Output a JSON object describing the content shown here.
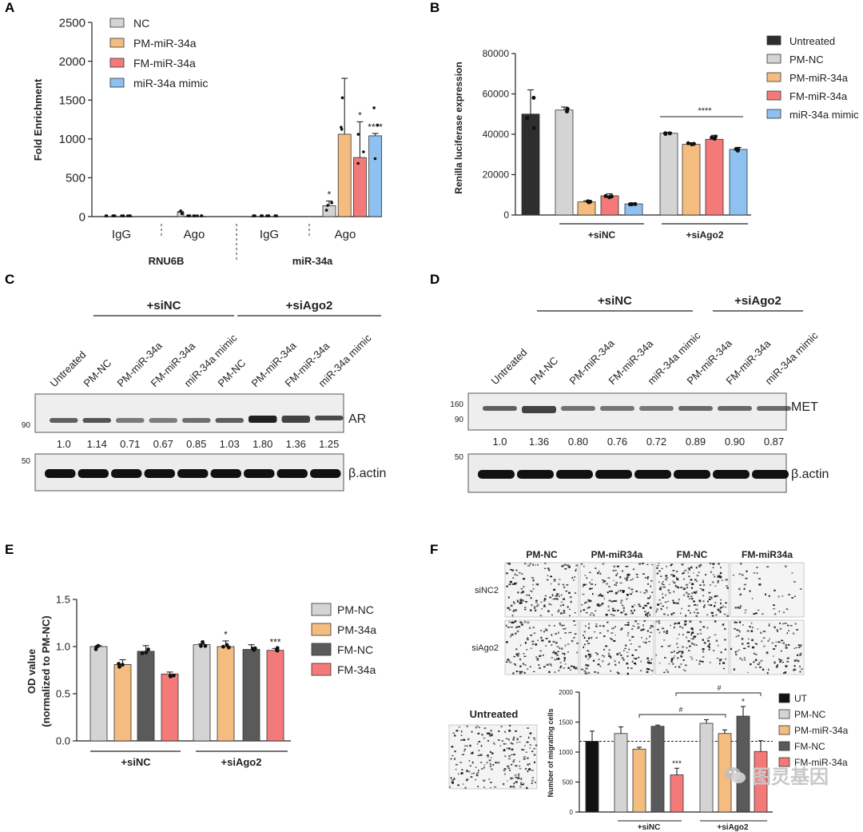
{
  "colors": {
    "NC": "#d4d4d4",
    "PM": "#f4bd7f",
    "FM": "#f47a7a",
    "mimic": "#8ec0f0",
    "untreated": "#2e2e2e",
    "fmnc": "#5a5a5a",
    "ut": "#111111"
  },
  "panels": {
    "A": {
      "letter": "A"
    },
    "B": {
      "letter": "B"
    },
    "C": {
      "letter": "C"
    },
    "D": {
      "letter": "D"
    },
    "E": {
      "letter": "E"
    },
    "F": {
      "letter": "F"
    }
  },
  "chart_data": [
    {
      "id": "A",
      "type": "bar",
      "title": "",
      "ylabel": "Fold Enrichment",
      "ylim": [
        0,
        2500
      ],
      "yticks": [
        "0",
        "500",
        "1000",
        "1500",
        "2000",
        "2500"
      ],
      "legend": [
        {
          "key": "NC",
          "label": "NC"
        },
        {
          "key": "PM",
          "label": "PM-miR-34a"
        },
        {
          "key": "FM",
          "label": "FM-miR-34a"
        },
        {
          "key": "mimic",
          "label": "miR-34a mimic"
        }
      ],
      "groups": [
        {
          "label": "IgG",
          "values": [
            1,
            1,
            1,
            1
          ],
          "err": [
            0,
            0,
            0,
            0
          ],
          "sig": [
            "",
            "",
            "",
            ""
          ]
        },
        {
          "label": "Ago",
          "values": [
            55,
            2,
            2,
            2
          ],
          "err": [
            8,
            0,
            0,
            0
          ],
          "sig": [
            "",
            "",
            "",
            ""
          ]
        },
        {
          "label": "IgG",
          "values": [
            1,
            1,
            1,
            1
          ],
          "err": [
            0,
            0,
            0,
            0
          ],
          "sig": [
            "",
            "",
            "",
            ""
          ]
        },
        {
          "label": "Ago",
          "values": [
            140,
            1060,
            760,
            1040
          ],
          "err": [
            60,
            720,
            460,
            30
          ],
          "sig": [
            "*",
            "",
            "*",
            "****"
          ]
        }
      ],
      "group_labels": [
        "RNU6B",
        "miR-34a"
      ]
    },
    {
      "id": "B",
      "type": "bar",
      "title": "",
      "ylabel": "Renilla luciferase expression",
      "ylim": [
        0,
        80000
      ],
      "yticks": [
        "0",
        "20000",
        "40000",
        "60000",
        "80000"
      ],
      "legend": [
        {
          "key": "untreated",
          "label": "Untreated"
        },
        {
          "key": "NC",
          "label": "PM-NC"
        },
        {
          "key": "PM",
          "label": "PM-miR-34a"
        },
        {
          "key": "FM",
          "label": "FM-miR-34a"
        },
        {
          "key": "mimic",
          "label": "miR-34a mimic"
        }
      ],
      "bars": [
        {
          "key": "untreated",
          "value": 50000,
          "err": 12000
        },
        {
          "key": "NC",
          "value": 52000,
          "err": 1500
        },
        {
          "key": "PM",
          "value": 6500,
          "err": 500
        },
        {
          "key": "FM",
          "value": 9500,
          "err": 1000
        },
        {
          "key": "mimic",
          "value": 5500,
          "err": 500
        },
        {
          "key": "NC",
          "value": 40500,
          "err": 500
        },
        {
          "key": "PM",
          "value": 35000,
          "err": 800
        },
        {
          "key": "FM",
          "value": 37500,
          "err": 2000
        },
        {
          "key": "mimic",
          "value": 32500,
          "err": 1000
        }
      ],
      "group_labels": [
        "+siNC",
        "+siAgo2"
      ],
      "annotation": "****"
    },
    {
      "id": "E",
      "type": "bar",
      "title": "",
      "ylabel": "OD value",
      "ylabel2": "(normalized to PM-NC)",
      "ylim": [
        0,
        1.5
      ],
      "yticks": [
        "0.0",
        "0.5",
        "1.0",
        "1.5"
      ],
      "legend": [
        {
          "key": "NC",
          "label": "PM-NC"
        },
        {
          "key": "PM",
          "label": "PM-34a"
        },
        {
          "key": "fmnc",
          "label": "FM-NC"
        },
        {
          "key": "FM",
          "label": "FM-34a"
        }
      ],
      "bars": [
        {
          "key": "NC",
          "value": 1.0,
          "err": 0.01,
          "sig": ""
        },
        {
          "key": "PM",
          "value": 0.81,
          "err": 0.05,
          "sig": ""
        },
        {
          "key": "fmnc",
          "value": 0.95,
          "err": 0.06,
          "sig": ""
        },
        {
          "key": "FM",
          "value": 0.71,
          "err": 0.02,
          "sig": ""
        },
        {
          "key": "NC",
          "value": 1.02,
          "err": 0.01,
          "sig": ""
        },
        {
          "key": "PM",
          "value": 1.0,
          "err": 0.06,
          "sig": "*"
        },
        {
          "key": "fmnc",
          "value": 0.97,
          "err": 0.05,
          "sig": ""
        },
        {
          "key": "FM",
          "value": 0.96,
          "err": 0.02,
          "sig": "***"
        }
      ],
      "group_labels": [
        "+siNC",
        "+siAgo2"
      ]
    },
    {
      "id": "F",
      "type": "bar",
      "title": "",
      "ylabel": "Number of migrating cells",
      "ylim": [
        0,
        2000
      ],
      "yticks": [
        "0",
        "500",
        "1000",
        "1500",
        "2000"
      ],
      "legend": [
        {
          "key": "ut",
          "label": "UT"
        },
        {
          "key": "NC",
          "label": "PM-NC"
        },
        {
          "key": "PM",
          "label": "PM-miR-34a"
        },
        {
          "key": "fmnc",
          "label": "FM-NC"
        },
        {
          "key": "FM",
          "label": "FM-miR-34a"
        }
      ],
      "bars": [
        {
          "key": "ut",
          "value": 1180,
          "err": 170,
          "sig": ""
        },
        {
          "key": "NC",
          "value": 1310,
          "err": 110,
          "sig": ""
        },
        {
          "key": "PM",
          "value": 1050,
          "err": 30,
          "sig": ""
        },
        {
          "key": "fmnc",
          "value": 1430,
          "err": 20,
          "sig": ""
        },
        {
          "key": "FM",
          "value": 620,
          "err": 110,
          "sig": "***"
        },
        {
          "key": "NC",
          "value": 1480,
          "err": 60,
          "sig": ""
        },
        {
          "key": "PM",
          "value": 1310,
          "err": 60,
          "sig": ""
        },
        {
          "key": "fmnc",
          "value": 1600,
          "err": 160,
          "sig": "*"
        },
        {
          "key": "FM",
          "value": 1010,
          "err": 180,
          "sig": ""
        }
      ],
      "group_labels": [
        "+siNC",
        "+siAgo2"
      ],
      "hash_label": "#",
      "reference_line": 1180
    }
  ],
  "blots": {
    "C": {
      "group_labels": [
        "+siNC",
        "+siAgo2"
      ],
      "lanes": [
        "Untreated",
        "PM-NC",
        "PM-miR-34a",
        "FM-miR-34a",
        "miR-34a mimic",
        "PM-NC",
        "PM-miR-34a",
        "FM-miR-34a",
        "miR-34a mimic"
      ],
      "quant": [
        "1.0",
        "1.14",
        "0.71",
        "0.67",
        "0.85",
        "1.03",
        "1.80",
        "1.36",
        "1.25"
      ],
      "band1_label": "AR",
      "band2_label": "β.actin",
      "mw1": "90",
      "mw2": "50"
    },
    "D": {
      "group_labels": [
        "+siNC",
        "+siAgo2"
      ],
      "lanes": [
        "Untreated",
        "PM-NC",
        "PM-miR-34a",
        "FM-miR-34a",
        "miR-34a mimic",
        "PM-miR-34a",
        "FM-miR-34a",
        "miR-34a mimic"
      ],
      "quant": [
        "1.0",
        "1.36",
        "0.80",
        "0.76",
        "0.72",
        "0.89",
        "0.90",
        "0.87"
      ],
      "band1_label": "MET",
      "band2_label": "β.actin",
      "mw1a": "160",
      "mw1b": "90",
      "mw2": "50"
    }
  },
  "migration": {
    "columns": [
      "PM-NC",
      "PM-miR34a",
      "FM-NC",
      "FM-miR34a"
    ],
    "rows": [
      "siNC2",
      "siAgo2"
    ],
    "untreated_label": "Untreated"
  },
  "watermark": "图灵基因"
}
